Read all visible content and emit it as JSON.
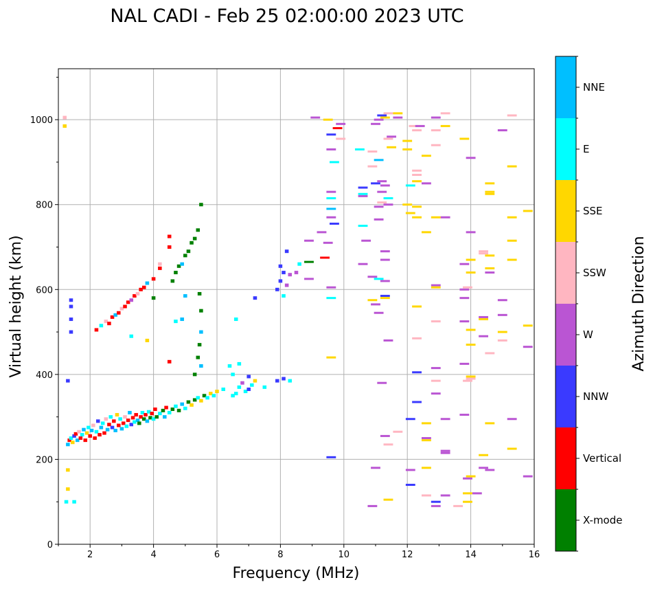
{
  "chart_data": {
    "type": "scatter",
    "title": "NAL CADI - Feb 25 02:00:00 2023 UTC",
    "xlabel": "Frequency (MHz)",
    "ylabel": "Virtual height (km)",
    "xlim": [
      1,
      16
    ],
    "ylim": [
      0,
      1120
    ],
    "xticks": [
      2,
      4,
      6,
      8,
      10,
      12,
      14,
      16
    ],
    "yticks": [
      0,
      200,
      400,
      600,
      800,
      1000
    ],
    "grid": true,
    "colorbar": {
      "label": "Azimuth Direction",
      "categories": [
        "X-mode",
        "Vertical",
        "NNW",
        "W",
        "SSW",
        "SSE",
        "E",
        "NNE"
      ],
      "colors": [
        "#008000",
        "#ff0000",
        "#3a3aff",
        "#ba55d3",
        "#ffb6c1",
        "#ffd700",
        "#00ffff",
        "#00bfff"
      ]
    },
    "point_fields": [
      "frequency_mhz",
      "height_km",
      "category_index"
    ],
    "points": [
      [
        1.3,
        235,
        7
      ],
      [
        1.35,
        245,
        1
      ],
      [
        1.4,
        250,
        6
      ],
      [
        1.45,
        240,
        5
      ],
      [
        1.5,
        255,
        2
      ],
      [
        1.55,
        260,
        1
      ],
      [
        1.6,
        245,
        7
      ],
      [
        1.65,
        265,
        4
      ],
      [
        1.7,
        250,
        1
      ],
      [
        1.75,
        258,
        6
      ],
      [
        1.8,
        270,
        7
      ],
      [
        1.85,
        245,
        1
      ],
      [
        1.9,
        262,
        5
      ],
      [
        1.95,
        275,
        6
      ],
      [
        2.0,
        255,
        1
      ],
      [
        2.05,
        268,
        7
      ],
      [
        2.1,
        280,
        4
      ],
      [
        2.15,
        250,
        1
      ],
      [
        2.2,
        265,
        6
      ],
      [
        2.25,
        290,
        2
      ],
      [
        2.3,
        258,
        1
      ],
      [
        2.35,
        275,
        7
      ],
      [
        2.4,
        285,
        6
      ],
      [
        2.45,
        262,
        1
      ],
      [
        2.5,
        295,
        4
      ],
      [
        2.55,
        270,
        7
      ],
      [
        2.6,
        282,
        1
      ],
      [
        2.65,
        300,
        6
      ],
      [
        2.7,
        275,
        2
      ],
      [
        2.75,
        290,
        1
      ],
      [
        2.8,
        268,
        7
      ],
      [
        2.85,
        305,
        5
      ],
      [
        2.9,
        280,
        1
      ],
      [
        2.95,
        295,
        6
      ],
      [
        3.0,
        272,
        7
      ],
      [
        3.05,
        285,
        1
      ],
      [
        3.1,
        300,
        4
      ],
      [
        3.15,
        278,
        6
      ],
      [
        3.2,
        292,
        1
      ],
      [
        3.25,
        310,
        7
      ],
      [
        3.3,
        282,
        2
      ],
      [
        3.35,
        298,
        1
      ],
      [
        3.4,
        288,
        6
      ],
      [
        3.45,
        305,
        1
      ],
      [
        3.5,
        292,
        7
      ],
      [
        3.55,
        285,
        0
      ],
      [
        3.6,
        300,
        1
      ],
      [
        3.65,
        310,
        6
      ],
      [
        3.7,
        295,
        0
      ],
      [
        3.75,
        305,
        1
      ],
      [
        3.8,
        290,
        7
      ],
      [
        3.85,
        312,
        6
      ],
      [
        3.9,
        298,
        0
      ],
      [
        3.95,
        308,
        1
      ],
      [
        4.0,
        295,
        6
      ],
      [
        4.05,
        318,
        1
      ],
      [
        4.1,
        300,
        0
      ],
      [
        4.2,
        308,
        6
      ],
      [
        4.3,
        315,
        0
      ],
      [
        4.35,
        300,
        7
      ],
      [
        4.4,
        322,
        1
      ],
      [
        4.5,
        310,
        6
      ],
      [
        4.6,
        318,
        0
      ],
      [
        4.7,
        325,
        6
      ],
      [
        4.8,
        315,
        0
      ],
      [
        4.9,
        330,
        7
      ],
      [
        5.0,
        320,
        6
      ],
      [
        5.1,
        335,
        0
      ],
      [
        5.2,
        328,
        5
      ],
      [
        5.3,
        340,
        0
      ],
      [
        5.4,
        345,
        6
      ],
      [
        5.5,
        338,
        5
      ],
      [
        5.6,
        350,
        0
      ],
      [
        5.7,
        345,
        6
      ],
      [
        5.8,
        355,
        5
      ],
      [
        5.9,
        350,
        6
      ],
      [
        6.0,
        360,
        5
      ],
      [
        6.2,
        365,
        6
      ],
      [
        6.5,
        350,
        6
      ],
      [
        6.6,
        355,
        6
      ],
      [
        6.7,
        370,
        6
      ],
      [
        6.8,
        380,
        3
      ],
      [
        6.9,
        360,
        6
      ],
      [
        7.0,
        365,
        2
      ],
      [
        7.1,
        375,
        6
      ],
      [
        7.2,
        385,
        5
      ],
      [
        6.5,
        400,
        6
      ],
      [
        6.7,
        425,
        6
      ],
      [
        6.4,
        420,
        6
      ],
      [
        7.0,
        395,
        2
      ],
      [
        7.5,
        370,
        6
      ],
      [
        7.9,
        385,
        2
      ],
      [
        8.1,
        390,
        2
      ],
      [
        8.3,
        385,
        6
      ],
      [
        1.25,
        100,
        6
      ],
      [
        1.3,
        130,
        5
      ],
      [
        1.5,
        100,
        6
      ],
      [
        1.3,
        385,
        2
      ],
      [
        1.3,
        175,
        5
      ],
      [
        1.2,
        1005,
        4
      ],
      [
        1.2,
        985,
        5
      ],
      [
        2.2,
        505,
        1
      ],
      [
        2.35,
        515,
        6
      ],
      [
        2.5,
        525,
        4
      ],
      [
        2.6,
        520,
        1
      ],
      [
        2.7,
        535,
        1
      ],
      [
        2.8,
        540,
        7
      ],
      [
        2.9,
        545,
        1
      ],
      [
        3.0,
        555,
        4
      ],
      [
        3.1,
        560,
        1
      ],
      [
        3.2,
        570,
        1
      ],
      [
        3.3,
        575,
        3
      ],
      [
        3.4,
        585,
        1
      ],
      [
        3.5,
        590,
        4
      ],
      [
        3.6,
        600,
        1
      ],
      [
        3.7,
        605,
        1
      ],
      [
        3.8,
        615,
        7
      ],
      [
        4.0,
        625,
        1
      ],
      [
        4.2,
        650,
        1
      ],
      [
        4.5,
        700,
        1
      ],
      [
        4.5,
        725,
        1
      ],
      [
        4.2,
        660,
        4
      ],
      [
        4.0,
        580,
        0
      ],
      [
        4.6,
        620,
        0
      ],
      [
        4.7,
        640,
        0
      ],
      [
        4.8,
        655,
        0
      ],
      [
        4.9,
        660,
        7
      ],
      [
        5.0,
        680,
        0
      ],
      [
        5.1,
        690,
        0
      ],
      [
        5.2,
        710,
        0
      ],
      [
        5.3,
        720,
        0
      ],
      [
        5.4,
        740,
        0
      ],
      [
        5.5,
        800,
        0
      ],
      [
        5.45,
        590,
        0
      ],
      [
        5.5,
        550,
        0
      ],
      [
        5.5,
        500,
        7
      ],
      [
        5.45,
        470,
        0
      ],
      [
        5.4,
        440,
        0
      ],
      [
        5.3,
        400,
        0
      ],
      [
        5.5,
        420,
        7
      ],
      [
        1.4,
        575,
        2
      ],
      [
        1.4,
        560,
        2
      ],
      [
        1.4,
        530,
        2
      ],
      [
        1.4,
        500,
        2
      ],
      [
        3.8,
        480,
        5
      ],
      [
        4.7,
        525,
        6
      ],
      [
        4.9,
        530,
        7
      ],
      [
        6.6,
        530,
        6
      ],
      [
        4.5,
        430,
        1
      ],
      [
        5.0,
        585,
        7
      ],
      [
        7.2,
        580,
        2
      ],
      [
        3.3,
        490,
        6
      ],
      [
        7.9,
        600,
        2
      ],
      [
        8.0,
        620,
        2
      ],
      [
        8.1,
        640,
        2
      ],
      [
        8.0,
        655,
        2
      ],
      [
        8.2,
        610,
        3
      ],
      [
        8.3,
        635,
        3
      ],
      [
        8.5,
        640,
        3
      ],
      [
        8.6,
        660,
        6
      ],
      [
        8.9,
        665,
        0
      ],
      [
        8.2,
        690,
        2
      ],
      [
        8.1,
        585,
        6
      ],
      [
        9.6,
        965,
        2
      ],
      [
        9.8,
        980,
        1
      ],
      [
        9.9,
        990,
        3
      ],
      [
        9.5,
        1000,
        5
      ],
      [
        9.1,
        1005,
        3
      ],
      [
        9.7,
        900,
        6
      ],
      [
        9.9,
        955,
        4
      ],
      [
        9.6,
        930,
        3
      ],
      [
        9.5,
        710,
        3
      ],
      [
        9.6,
        830,
        3
      ],
      [
        9.6,
        815,
        6
      ],
      [
        9.6,
        790,
        7
      ],
      [
        9.6,
        770,
        3
      ],
      [
        9.7,
        755,
        2
      ],
      [
        9.3,
        735,
        3
      ],
      [
        8.9,
        715,
        3
      ],
      [
        9.4,
        675,
        1
      ],
      [
        9.6,
        605,
        3
      ],
      [
        9.6,
        580,
        6
      ],
      [
        9.6,
        440,
        5
      ],
      [
        9.6,
        205,
        2
      ],
      [
        8.9,
        625,
        3
      ],
      [
        10.5,
        930,
        6
      ],
      [
        10.6,
        840,
        2
      ],
      [
        10.6,
        825,
        6
      ],
      [
        10.6,
        820,
        3
      ],
      [
        10.6,
        750,
        6
      ],
      [
        10.7,
        715,
        3
      ],
      [
        10.6,
        660,
        3
      ],
      [
        10.9,
        630,
        3
      ],
      [
        11.1,
        625,
        6
      ],
      [
        10.9,
        575,
        5
      ],
      [
        11.0,
        565,
        3
      ],
      [
        11.1,
        545,
        3
      ],
      [
        11.2,
        380,
        3
      ],
      [
        11.0,
        180,
        3
      ],
      [
        10.9,
        90,
        3
      ],
      [
        11.0,
        990,
        3
      ],
      [
        11.2,
        1010,
        2
      ],
      [
        11.1,
        1000,
        3
      ],
      [
        11.4,
        1015,
        4
      ],
      [
        11.3,
        1005,
        5
      ],
      [
        11.5,
        960,
        3
      ],
      [
        11.4,
        955,
        4
      ],
      [
        11.5,
        935,
        5
      ],
      [
        11.1,
        905,
        7
      ],
      [
        10.9,
        925,
        4
      ],
      [
        10.9,
        890,
        4
      ],
      [
        11.0,
        850,
        2
      ],
      [
        11.2,
        855,
        3
      ],
      [
        11.3,
        845,
        3
      ],
      [
        11.2,
        830,
        3
      ],
      [
        11.4,
        815,
        6
      ],
      [
        11.2,
        805,
        4
      ],
      [
        11.4,
        800,
        3
      ],
      [
        11.1,
        795,
        3
      ],
      [
        11.1,
        765,
        3
      ],
      [
        11.3,
        690,
        3
      ],
      [
        11.3,
        670,
        3
      ],
      [
        11.3,
        620,
        3
      ],
      [
        11.3,
        585,
        2
      ],
      [
        11.3,
        580,
        5
      ],
      [
        11.4,
        480,
        3
      ],
      [
        11.3,
        255,
        3
      ],
      [
        11.4,
        235,
        4
      ],
      [
        11.4,
        105,
        5
      ],
      [
        11.7,
        265,
        4
      ],
      [
        11.7,
        1015,
        5
      ],
      [
        11.7,
        1005,
        3
      ],
      [
        12.2,
        985,
        4
      ],
      [
        12.4,
        985,
        3
      ],
      [
        12.3,
        975,
        4
      ],
      [
        12.6,
        915,
        5
      ],
      [
        12.0,
        950,
        5
      ],
      [
        12.0,
        930,
        5
      ],
      [
        12.3,
        880,
        4
      ],
      [
        12.3,
        870,
        4
      ],
      [
        12.3,
        855,
        5
      ],
      [
        12.1,
        845,
        6
      ],
      [
        12.6,
        850,
        3
      ],
      [
        12.0,
        800,
        5
      ],
      [
        12.3,
        795,
        5
      ],
      [
        12.1,
        780,
        5
      ],
      [
        12.3,
        770,
        5
      ],
      [
        12.6,
        735,
        5
      ],
      [
        12.3,
        560,
        5
      ],
      [
        12.3,
        485,
        4
      ],
      [
        12.3,
        405,
        2
      ],
      [
        12.3,
        335,
        2
      ],
      [
        12.1,
        295,
        2
      ],
      [
        12.6,
        285,
        5
      ],
      [
        12.6,
        250,
        3
      ],
      [
        12.6,
        245,
        5
      ],
      [
        12.1,
        175,
        3
      ],
      [
        12.6,
        180,
        5
      ],
      [
        12.1,
        140,
        2
      ],
      [
        12.6,
        115,
        4
      ],
      [
        12.9,
        100,
        2
      ],
      [
        12.9,
        90,
        3
      ],
      [
        12.9,
        1005,
        3
      ],
      [
        12.9,
        975,
        4
      ],
      [
        12.9,
        940,
        4
      ],
      [
        13.2,
        1015,
        4
      ],
      [
        13.2,
        985,
        5
      ],
      [
        12.9,
        770,
        5
      ],
      [
        13.2,
        770,
        3
      ],
      [
        12.9,
        610,
        3
      ],
      [
        12.9,
        605,
        5
      ],
      [
        12.9,
        525,
        4
      ],
      [
        12.9,
        415,
        3
      ],
      [
        12.9,
        385,
        4
      ],
      [
        12.9,
        355,
        3
      ],
      [
        13.2,
        295,
        3
      ],
      [
        13.2,
        215,
        3
      ],
      [
        13.2,
        220,
        3
      ],
      [
        13.2,
        115,
        3
      ],
      [
        13.8,
        955,
        5
      ],
      [
        14.0,
        910,
        3
      ],
      [
        14.0,
        735,
        3
      ],
      [
        14.0,
        670,
        5
      ],
      [
        13.8,
        660,
        3
      ],
      [
        14.0,
        640,
        5
      ],
      [
        13.8,
        600,
        3
      ],
      [
        13.8,
        580,
        3
      ],
      [
        13.8,
        525,
        3
      ],
      [
        14.0,
        505,
        5
      ],
      [
        13.9,
        605,
        4
      ],
      [
        14.0,
        470,
        5
      ],
      [
        13.8,
        425,
        3
      ],
      [
        14.0,
        395,
        5
      ],
      [
        14.0,
        390,
        4
      ],
      [
        13.9,
        385,
        4
      ],
      [
        13.8,
        305,
        3
      ],
      [
        13.9,
        155,
        3
      ],
      [
        14.0,
        160,
        5
      ],
      [
        13.9,
        120,
        5
      ],
      [
        13.9,
        100,
        5
      ],
      [
        13.6,
        90,
        4
      ],
      [
        14.2,
        120,
        3
      ],
      [
        14.6,
        850,
        5
      ],
      [
        14.6,
        830,
        5
      ],
      [
        14.6,
        825,
        5
      ],
      [
        14.4,
        690,
        4
      ],
      [
        14.4,
        685,
        4
      ],
      [
        14.6,
        680,
        5
      ],
      [
        14.6,
        650,
        5
      ],
      [
        14.6,
        640,
        3
      ],
      [
        14.4,
        535,
        3
      ],
      [
        14.4,
        530,
        5
      ],
      [
        14.6,
        450,
        4
      ],
      [
        14.4,
        490,
        3
      ],
      [
        14.4,
        210,
        5
      ],
      [
        14.4,
        180,
        3
      ],
      [
        14.6,
        285,
        5
      ],
      [
        14.6,
        175,
        3
      ],
      [
        15.0,
        975,
        3
      ],
      [
        15.3,
        1010,
        4
      ],
      [
        15.3,
        890,
        5
      ],
      [
        15.3,
        770,
        5
      ],
      [
        15.3,
        715,
        5
      ],
      [
        15.3,
        670,
        5
      ],
      [
        15.0,
        575,
        3
      ],
      [
        15.0,
        540,
        3
      ],
      [
        15.0,
        500,
        5
      ],
      [
        15.0,
        480,
        4
      ],
      [
        15.3,
        295,
        3
      ],
      [
        15.3,
        225,
        5
      ],
      [
        15.8,
        785,
        5
      ],
      [
        15.8,
        515,
        5
      ],
      [
        15.8,
        465,
        3
      ],
      [
        15.8,
        160,
        3
      ]
    ]
  }
}
